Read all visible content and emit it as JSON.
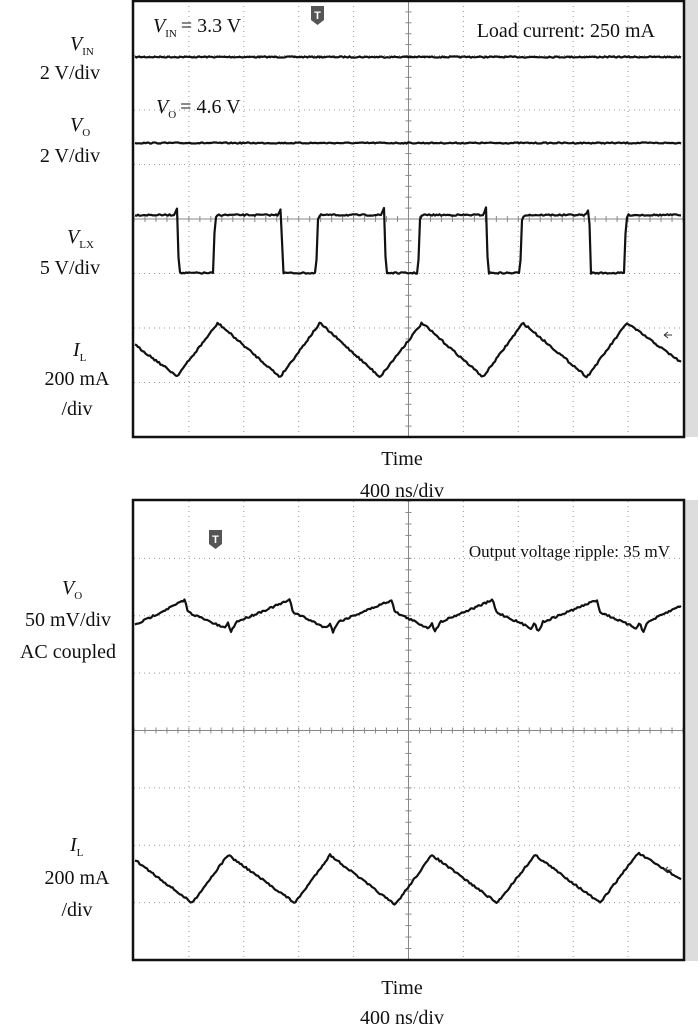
{
  "panels": [
    {
      "annotations": [
        {
          "symbol": "V",
          "subscript": "IN",
          "text": "= 3.3 V"
        },
        {
          "symbol": "V",
          "subscript": "O",
          "text": "= 4.6 V"
        }
      ],
      "note": "Load current: 250 mA",
      "trigger": "T",
      "channels": [
        {
          "symbol": "V",
          "subscript": "IN",
          "scale": [
            "2 V/div"
          ]
        },
        {
          "symbol": "V",
          "subscript": "O",
          "scale": [
            "2 V/div"
          ]
        },
        {
          "symbol": "V",
          "subscript": "LX",
          "scale": [
            "5 V/div"
          ]
        },
        {
          "symbol": "I",
          "subscript": "L",
          "scale": [
            "200 mA",
            "/div"
          ]
        }
      ],
      "x_label": "Time",
      "x_scale": "400 ns/div"
    },
    {
      "note": "Output voltage ripple: 35 mV",
      "trigger": "T",
      "channels": [
        {
          "symbol": "V",
          "subscript": "O",
          "scale": [
            "50 mV/div",
            "AC coupled"
          ]
        },
        {
          "symbol": "I",
          "subscript": "L",
          "scale": [
            "200 mA",
            "/div"
          ]
        }
      ],
      "x_label": "Time",
      "x_scale": "400 ns/div"
    }
  ]
}
